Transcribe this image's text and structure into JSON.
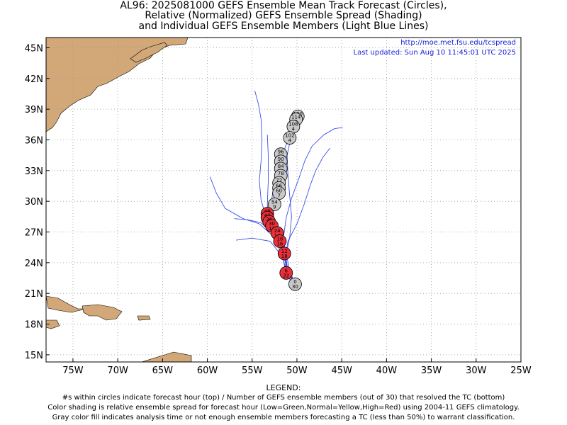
{
  "title": {
    "line1": "AL96: 2025081000 GEFS Ensemble Mean Track Forecast (Circles),",
    "line2": "Relative (Normalized) GEFS Ensemble Spread (Shading)",
    "line3": "and Individual GEFS Ensemble Members (Light Blue Lines)"
  },
  "source_url": "http://moe.met.fsu.edu/tcspread",
  "last_updated": "Last updated: Sun Aug 10 11:45:01 UTC 2025",
  "axes": {
    "lat_labels": [
      "45N",
      "42N",
      "39N",
      "36N",
      "33N",
      "30N",
      "27N",
      "24N",
      "21N",
      "18N",
      "15N"
    ],
    "lat_values": [
      45,
      42,
      39,
      36,
      33,
      30,
      27,
      24,
      21,
      18,
      15
    ],
    "lon_labels": [
      "75W",
      "70W",
      "65W",
      "60W",
      "55W",
      "50W",
      "45W",
      "40W",
      "35W",
      "30W",
      "25W"
    ],
    "lon_values": [
      75,
      70,
      65,
      60,
      55,
      50,
      45,
      40,
      35,
      30,
      25
    ]
  },
  "colors": {
    "land": "#d2a878",
    "member_line": "#3a4fe6",
    "spread_high": "#e8303a",
    "spread_na": "#c8c8c8",
    "grid": "#999999",
    "link_text": "#1a22d6"
  },
  "track_points": [
    {
      "top": "0",
      "bottom": "30",
      "lon": 50.2,
      "lat": 21.9,
      "spread": "na"
    },
    {
      "top": "6",
      "bottom": "22",
      "lon": 51.2,
      "lat": 23.0,
      "spread": "high"
    },
    {
      "top": "12",
      "bottom": "18",
      "lon": 51.4,
      "lat": 24.9,
      "spread": "high"
    },
    {
      "top": "18",
      "bottom": "16",
      "lon": 51.9,
      "lat": 26.1,
      "spread": "high"
    },
    {
      "top": "24",
      "bottom": "14",
      "lon": 52.2,
      "lat": 26.9,
      "spread": "high"
    },
    {
      "top": "30",
      "bottom": "13",
      "lon": 52.8,
      "lat": 27.6,
      "spread": "high"
    },
    {
      "top": "36",
      "bottom": "11",
      "lon": 53.1,
      "lat": 28.0,
      "spread": "high"
    },
    {
      "top": "42",
      "bottom": "11",
      "lon": 53.3,
      "lat": 28.4,
      "spread": "high"
    },
    {
      "top": "48",
      "bottom": "11",
      "lon": 53.3,
      "lat": 28.8,
      "spread": "high"
    },
    {
      "top": "54",
      "bottom": "9",
      "lon": 52.5,
      "lat": 29.7,
      "spread": "na"
    },
    {
      "top": "60",
      "bottom": "7",
      "lon": 52.0,
      "lat": 30.8,
      "spread": "na"
    },
    {
      "top": "66",
      "bottom": "7",
      "lon": 52.0,
      "lat": 31.3,
      "spread": "na"
    },
    {
      "top": "72",
      "bottom": "7",
      "lon": 52.0,
      "lat": 31.8,
      "spread": "na"
    },
    {
      "top": "78",
      "bottom": "6",
      "lon": 51.8,
      "lat": 32.5,
      "spread": "na"
    },
    {
      "top": "84",
      "bottom": "6",
      "lon": 51.8,
      "lat": 33.2,
      "spread": "na"
    },
    {
      "top": "90",
      "bottom": "6",
      "lon": 51.8,
      "lat": 33.9,
      "spread": "na"
    },
    {
      "top": "96",
      "bottom": "6",
      "lon": 51.8,
      "lat": 34.6,
      "spread": "na"
    },
    {
      "top": "102",
      "bottom": "4",
      "lon": 50.8,
      "lat": 36.2,
      "spread": "na"
    },
    {
      "top": "108",
      "bottom": "4",
      "lon": 50.4,
      "lat": 37.3,
      "spread": "na"
    },
    {
      "top": "114",
      "bottom": "3",
      "lon": 50.1,
      "lat": 38.0,
      "spread": "na"
    },
    {
      "top": "120",
      "bottom": "3",
      "lon": 49.9,
      "lat": 38.3,
      "spread": "na"
    }
  ],
  "member_tracks": [
    [
      [
        50.2,
        21.9
      ],
      [
        51.0,
        23.3
      ],
      [
        51.6,
        25.6
      ],
      [
        52.4,
        27.2
      ],
      [
        53.5,
        28.6
      ],
      [
        54.0,
        30.1
      ],
      [
        54.2,
        32.0
      ],
      [
        54.0,
        34.0
      ],
      [
        53.9,
        36.0
      ],
      [
        54.0,
        38.0
      ],
      [
        54.3,
        39.5
      ],
      [
        54.7,
        40.8
      ]
    ],
    [
      [
        50.2,
        21.9
      ],
      [
        51.0,
        23.1
      ],
      [
        51.3,
        25.0
      ],
      [
        51.5,
        26.5
      ],
      [
        51.2,
        28.4
      ],
      [
        50.6,
        30.3
      ],
      [
        49.8,
        32.2
      ],
      [
        49.1,
        34.0
      ],
      [
        48.3,
        35.4
      ],
      [
        47.0,
        36.5
      ],
      [
        45.8,
        37.1
      ],
      [
        44.9,
        37.2
      ]
    ],
    [
      [
        50.2,
        21.9
      ],
      [
        51.0,
        22.9
      ],
      [
        51.3,
        24.6
      ],
      [
        51.0,
        26.1
      ],
      [
        50.0,
        27.8
      ],
      [
        49.2,
        29.7
      ],
      [
        48.5,
        31.6
      ],
      [
        47.9,
        33.0
      ],
      [
        47.1,
        34.3
      ],
      [
        46.3,
        35.2
      ]
    ],
    [
      [
        50.2,
        21.9
      ],
      [
        51.2,
        23.1
      ],
      [
        51.8,
        25.1
      ],
      [
        52.8,
        26.7
      ],
      [
        54.2,
        27.8
      ],
      [
        56.0,
        28.3
      ],
      [
        58.0,
        29.3
      ],
      [
        59.0,
        30.8
      ],
      [
        59.7,
        32.4
      ]
    ],
    [
      [
        50.2,
        21.9
      ],
      [
        51.0,
        23.0
      ],
      [
        51.8,
        24.8
      ],
      [
        53.0,
        26.1
      ],
      [
        55.0,
        26.4
      ],
      [
        56.8,
        26.2
      ]
    ],
    [
      [
        50.2,
        21.9
      ],
      [
        51.0,
        23.1
      ],
      [
        51.8,
        25.6
      ],
      [
        53.0,
        27.4
      ],
      [
        53.3,
        29.7
      ],
      [
        53.2,
        32.0
      ],
      [
        53.2,
        34.5
      ],
      [
        53.3,
        36.5
      ]
    ],
    [
      [
        50.2,
        21.9
      ],
      [
        50.8,
        23.2
      ],
      [
        51.2,
        24.9
      ],
      [
        51.8,
        26.6
      ],
      [
        52.6,
        28.0
      ],
      [
        52.9,
        29.6
      ],
      [
        52.6,
        31.5
      ],
      [
        52.0,
        33.3
      ],
      [
        51.3,
        35.3
      ],
      [
        50.4,
        37.3
      ],
      [
        49.5,
        38.8
      ]
    ],
    [
      [
        50.2,
        21.9
      ],
      [
        51.3,
        22.8
      ],
      [
        51.2,
        24.8
      ],
      [
        50.8,
        26.5
      ],
      [
        50.6,
        28.5
      ],
      [
        50.8,
        30.5
      ],
      [
        51.0,
        32.5
      ],
      [
        51.1,
        34.5
      ],
      [
        50.6,
        36.5
      ]
    ],
    [
      [
        50.2,
        21.9
      ],
      [
        51.0,
        23.0
      ],
      [
        51.5,
        25.0
      ],
      [
        52.6,
        26.8
      ],
      [
        54.0,
        27.9
      ],
      [
        55.5,
        28.2
      ],
      [
        57.0,
        28.3
      ]
    ]
  ],
  "legend": {
    "heading": "LEGEND:",
    "line1": "#s within circles indicate forecast hour (top) / Number of GEFS ensemble members (out of 30) that resolved the TC (bottom)",
    "line2": "Color shading is relative ensemble spread for forecast hour (Low=Green,Normal=Yellow,High=Red) using 2004-11 GEFS climatology.",
    "line3": "Gray color fill indicates analysis time or not enough ensemble members forecasting a TC (less than 50%) to warrant classification."
  }
}
